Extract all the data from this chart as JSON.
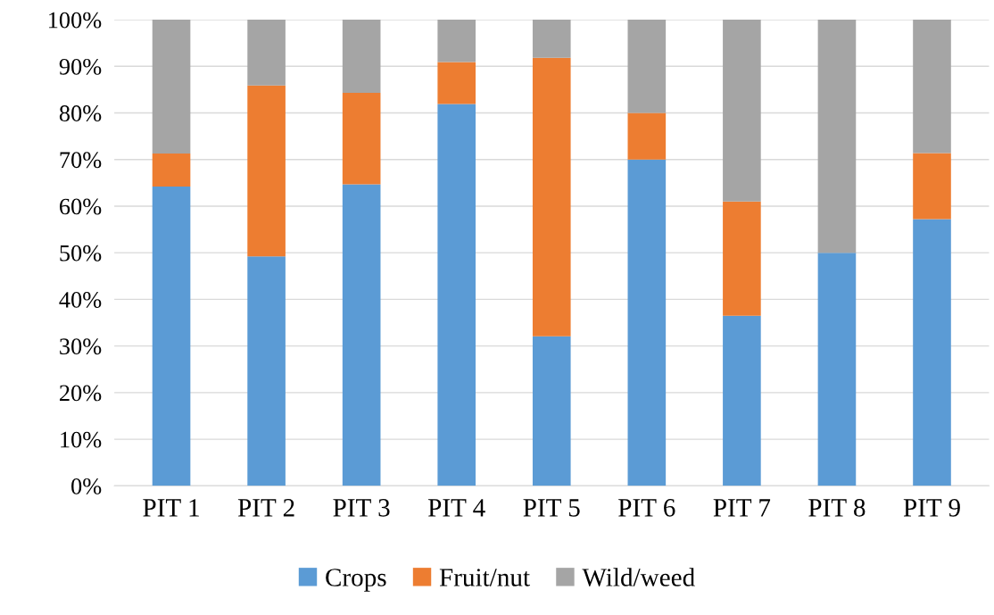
{
  "chart_data": {
    "type": "bar",
    "stacked": true,
    "categories": [
      "PIT 1",
      "PIT 2",
      "PIT 3",
      "PIT 4",
      "PIT 5",
      "PIT 6",
      "PIT 7",
      "PIT 8",
      "PIT 9"
    ],
    "series": [
      {
        "name": "Crops",
        "color": "#5b9bd5",
        "values": [
          64.2,
          49.2,
          64.7,
          81.9,
          32.1,
          70.0,
          36.5,
          50.0,
          57.2
        ]
      },
      {
        "name": "Fruit/nut",
        "color": "#ed7d31",
        "values": [
          7.1,
          36.7,
          19.6,
          9.0,
          59.7,
          10.0,
          24.5,
          0,
          14.2
        ]
      },
      {
        "name": "Wild/weed",
        "color": "#a5a5a5",
        "values": [
          28.7,
          14.1,
          15.7,
          9.1,
          8.2,
          20.0,
          39.0,
          50.0,
          28.6
        ]
      }
    ],
    "ylim": [
      0,
      100
    ],
    "yticks": [
      {
        "value": 0,
        "label": "0%"
      },
      {
        "value": 10,
        "label": "10%"
      },
      {
        "value": 20,
        "label": "20%"
      },
      {
        "value": 30,
        "label": "30%"
      },
      {
        "value": 40,
        "label": "40%"
      },
      {
        "value": 50,
        "label": "50%"
      },
      {
        "value": 60,
        "label": "60%"
      },
      {
        "value": 70,
        "label": "70%"
      },
      {
        "value": 80,
        "label": "80%"
      },
      {
        "value": 90,
        "label": "90%"
      },
      {
        "value": 100,
        "label": "100%"
      }
    ],
    "grid": "y",
    "legend": "bottom"
  }
}
